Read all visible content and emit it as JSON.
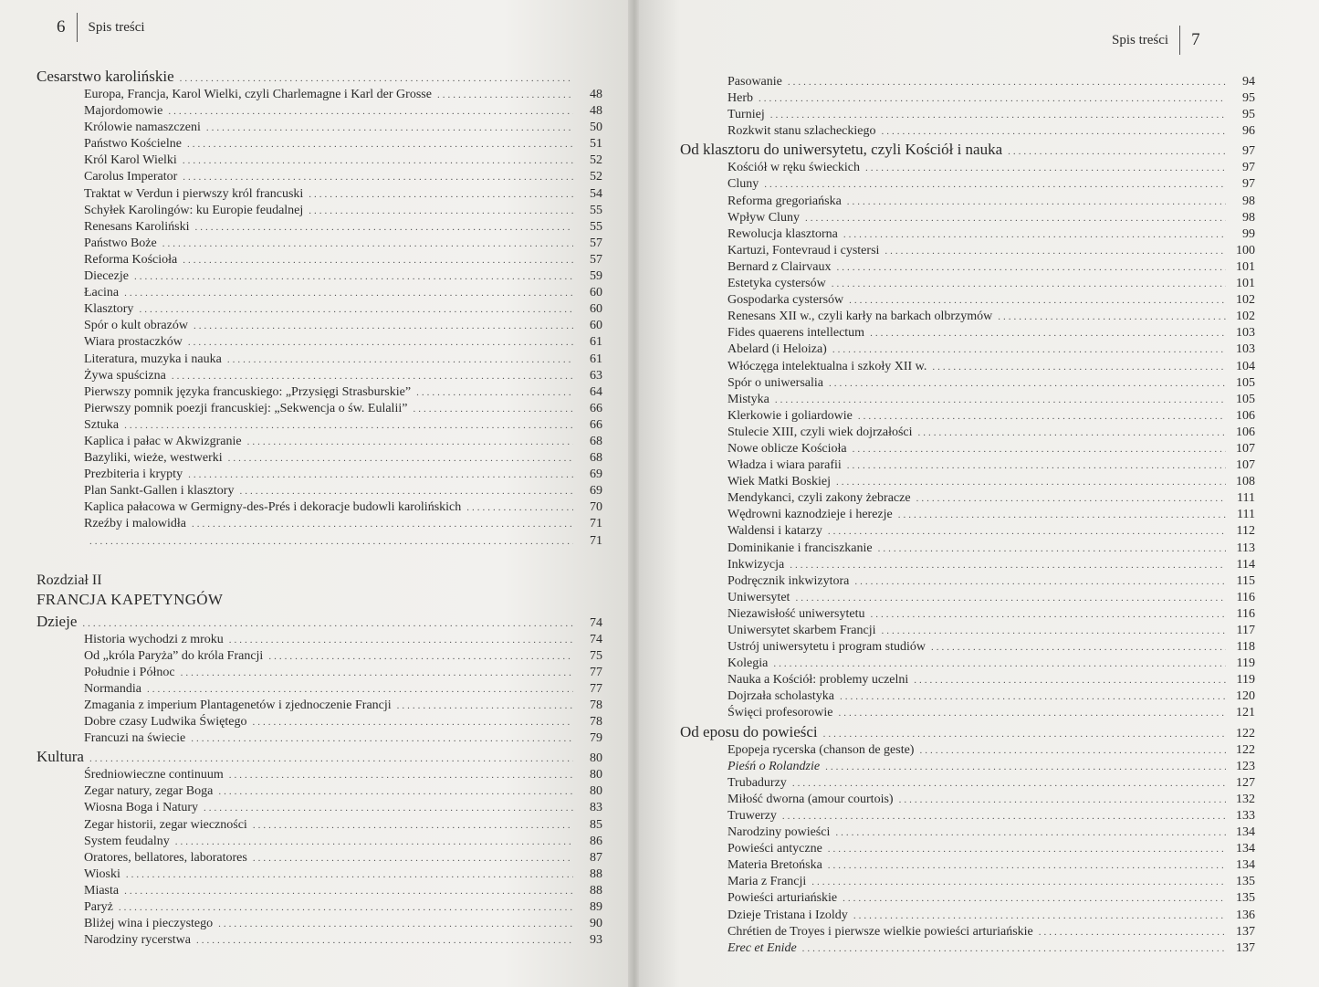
{
  "left_page": {
    "page_number": "6",
    "running_head": "Spis treści",
    "blocks": [
      {
        "type": "sec",
        "title": "Cesarstwo karolińskie",
        "page": ""
      },
      {
        "type": "sub",
        "title": "Europa, Francja, Karol Wielki, czyli Charlemagne i Karl der Grosse",
        "page": "48"
      },
      {
        "type": "sub",
        "title": "Majordomowie",
        "page": "48"
      },
      {
        "type": "sub",
        "title": "Królowie namaszczeni",
        "page": "50"
      },
      {
        "type": "sub",
        "title": "Państwo Kościelne",
        "page": "51"
      },
      {
        "type": "sub",
        "title": "Król Karol Wielki",
        "page": "52"
      },
      {
        "type": "sub",
        "title": "Carolus Imperator",
        "page": "52"
      },
      {
        "type": "sub",
        "title": "Traktat w Verdun i pierwszy król francuski",
        "page": "54"
      },
      {
        "type": "sub",
        "title": "Schyłek Karolingów: ku Europie feudalnej",
        "page": "55"
      },
      {
        "type": "sub",
        "title": "Renesans Karoliński",
        "page": "55"
      },
      {
        "type": "sub",
        "title": "Państwo Boże",
        "page": "57"
      },
      {
        "type": "sub",
        "title": "Reforma Kościoła",
        "page": "57"
      },
      {
        "type": "sub",
        "title": "Diecezje",
        "page": "59"
      },
      {
        "type": "sub",
        "title": "Łacina",
        "page": "60"
      },
      {
        "type": "sub",
        "title": "Klasztory",
        "page": "60"
      },
      {
        "type": "sub",
        "title": "Spór o kult obrazów",
        "page": "60"
      },
      {
        "type": "sub",
        "title": "Wiara prostaczków",
        "page": "61"
      },
      {
        "type": "sub",
        "title": "Literatura, muzyka i nauka",
        "page": "61"
      },
      {
        "type": "sub",
        "title": "Żywa spuścizna",
        "page": "63"
      },
      {
        "type": "sub",
        "title": "Pierwszy pomnik języka francuskiego: „Przysięgi Strasburskie”",
        "page": "64"
      },
      {
        "type": "sub",
        "title": "Pierwszy pomnik poezji francuskiej: „Sekwencja o św. Eulalii”",
        "page": "66"
      },
      {
        "type": "sub",
        "title": "Sztuka",
        "page": "66"
      },
      {
        "type": "sub",
        "title": "Kaplica i pałac w Akwizgranie",
        "page": "68"
      },
      {
        "type": "sub",
        "title": "Bazyliki, wieże, westwerki",
        "page": "68"
      },
      {
        "type": "sub",
        "title": "Prezbiteria i krypty",
        "page": "69"
      },
      {
        "type": "sub",
        "title": "Plan Sankt-Gallen i klasztory",
        "page": "69"
      },
      {
        "type": "sub",
        "title": "Kaplica pałacowa w Germigny-des-Prés i dekoracje budowli karolińskich",
        "page": "70"
      },
      {
        "type": "sub",
        "title": "Rzeźby i malowidła",
        "page": "71"
      },
      {
        "type": "sub",
        "title": "",
        "page": "71"
      },
      {
        "type": "gap"
      },
      {
        "type": "chap",
        "title": "Rozdział II"
      },
      {
        "type": "chapt",
        "title": "FRANCJA KAPETYNGÓW"
      },
      {
        "type": "sec",
        "title": "Dzieje",
        "page": "74"
      },
      {
        "type": "sub",
        "title": "Historia wychodzi z mroku",
        "page": "74"
      },
      {
        "type": "sub",
        "title": "Od „króla Paryża” do króla Francji",
        "page": "75"
      },
      {
        "type": "sub",
        "title": "Południe i Północ",
        "page": "77"
      },
      {
        "type": "sub",
        "title": "Normandia",
        "page": "77"
      },
      {
        "type": "sub",
        "title": "Zmagania z imperium Plantagenetów i zjednoczenie Francji",
        "page": "78"
      },
      {
        "type": "sub",
        "title": "Dobre czasy Ludwika Świętego",
        "page": "78"
      },
      {
        "type": "sub",
        "title": "Francuzi na świecie",
        "page": "79"
      },
      {
        "type": "sec",
        "title": "Kultura",
        "page": "80"
      },
      {
        "type": "sub",
        "title": "Średniowieczne continuum",
        "page": "80"
      },
      {
        "type": "sub",
        "title": "Zegar natury, zegar Boga",
        "page": "80"
      },
      {
        "type": "sub",
        "title": "Wiosna Boga i Natury",
        "page": "83"
      },
      {
        "type": "sub",
        "title": "Zegar historii, zegar wieczności",
        "page": "85"
      },
      {
        "type": "sub",
        "title": "System feudalny",
        "page": "86"
      },
      {
        "type": "sub",
        "title": "Oratores, bellatores, laboratores",
        "page": "87"
      },
      {
        "type": "sub",
        "title": "Wioski",
        "page": "88"
      },
      {
        "type": "sub",
        "title": "Miasta",
        "page": "88"
      },
      {
        "type": "sub",
        "title": "Paryż",
        "page": "89"
      },
      {
        "type": "sub",
        "title": "Bliżej wina i pieczystego",
        "page": "90"
      },
      {
        "type": "sub",
        "title": "Narodziny rycerstwa",
        "page": "93"
      }
    ]
  },
  "right_page": {
    "page_number": "7",
    "running_head": "Spis treści",
    "blocks": [
      {
        "type": "sub",
        "title": "Pasowanie",
        "page": "94"
      },
      {
        "type": "sub",
        "title": "Herb",
        "page": "95"
      },
      {
        "type": "sub",
        "title": "Turniej",
        "page": "95"
      },
      {
        "type": "sub",
        "title": "Rozkwit stanu szlacheckiego",
        "page": "96"
      },
      {
        "type": "sec",
        "title": "Od klasztoru do uniwersytetu, czyli Kościół i nauka",
        "page": "97"
      },
      {
        "type": "sub",
        "title": "Kościół w ręku świeckich",
        "page": "97"
      },
      {
        "type": "sub",
        "title": "Cluny",
        "page": "97"
      },
      {
        "type": "sub",
        "title": "Reforma gregoriańska",
        "page": "98"
      },
      {
        "type": "sub",
        "title": "Wpływ Cluny",
        "page": "98"
      },
      {
        "type": "sub",
        "title": "Rewolucja klasztorna",
        "page": "99"
      },
      {
        "type": "sub",
        "title": "Kartuzi, Fontevraud i cystersi",
        "page": "100"
      },
      {
        "type": "sub",
        "title": "Bernard z Clairvaux",
        "page": "101"
      },
      {
        "type": "sub",
        "title": "Estetyka cystersów",
        "page": "101"
      },
      {
        "type": "sub",
        "title": "Gospodarka cystersów",
        "page": "102"
      },
      {
        "type": "sub",
        "title": "Renesans XII w., czyli karły na barkach olbrzymów",
        "page": "102"
      },
      {
        "type": "sub",
        "title": "Fides quaerens intellectum",
        "page": "103"
      },
      {
        "type": "sub",
        "title": "Abelard (i Heloiza)",
        "page": "103"
      },
      {
        "type": "sub",
        "title": "Włóczęga intelektualna i szkoły XII w.",
        "page": "104"
      },
      {
        "type": "sub",
        "title": "Spór o uniwersalia",
        "page": "105"
      },
      {
        "type": "sub",
        "title": "Mistyka",
        "page": "105"
      },
      {
        "type": "sub",
        "title": "Klerkowie i goliardowie",
        "page": "106"
      },
      {
        "type": "sub",
        "title": "Stulecie XIII, czyli wiek dojrzałości",
        "page": "106"
      },
      {
        "type": "sub",
        "title": "Nowe oblicze Kościoła",
        "page": "107"
      },
      {
        "type": "sub",
        "title": "Władza i wiara parafii",
        "page": "107"
      },
      {
        "type": "sub",
        "title": "Wiek Matki Boskiej",
        "page": "108"
      },
      {
        "type": "sub",
        "title": "Mendykanci, czyli zakony żebracze",
        "page": "111"
      },
      {
        "type": "sub",
        "title": "Wędrowni kaznodzieje i herezje",
        "page": "111"
      },
      {
        "type": "sub",
        "title": "Waldensi i katarzy",
        "page": "112"
      },
      {
        "type": "sub",
        "title": "Dominikanie i franciszkanie",
        "page": "113"
      },
      {
        "type": "sub",
        "title": "Inkwizycja",
        "page": "114"
      },
      {
        "type": "sub",
        "title": "Podręcznik inkwizytora",
        "page": "115"
      },
      {
        "type": "sub",
        "title": "Uniwersytet",
        "page": "116"
      },
      {
        "type": "sub",
        "title": "Niezawisłość uniwersytetu",
        "page": "116"
      },
      {
        "type": "sub",
        "title": "Uniwersytet skarbem Francji",
        "page": "117"
      },
      {
        "type": "sub",
        "title": "Ustrój uniwersytetu i program studiów",
        "page": "118"
      },
      {
        "type": "sub",
        "title": "Kolegia",
        "page": "119"
      },
      {
        "type": "sub",
        "title": "Nauka a Kościół: problemy uczelni",
        "page": "119"
      },
      {
        "type": "sub",
        "title": "Dojrzała scholastyka",
        "page": "120"
      },
      {
        "type": "sub",
        "title": "Święci profesorowie",
        "page": "121"
      },
      {
        "type": "sec",
        "title": "Od eposu do powieści",
        "page": "122"
      },
      {
        "type": "sub",
        "title": "Epopeja rycerska (chanson de geste)",
        "page": "122"
      },
      {
        "type": "sub",
        "title": "Pieśń o Rolandzie",
        "page": "123",
        "italic": true
      },
      {
        "type": "sub",
        "title": "Trubadurzy",
        "page": "127"
      },
      {
        "type": "sub",
        "title": "Miłość dworna (amour courtois)",
        "page": "132"
      },
      {
        "type": "sub",
        "title": "Truwerzy",
        "page": "133"
      },
      {
        "type": "sub",
        "title": "Narodziny powieści",
        "page": "134"
      },
      {
        "type": "sub",
        "title": "Powieści antyczne",
        "page": "134"
      },
      {
        "type": "sub",
        "title": "Materia Bretońska",
        "page": "134"
      },
      {
        "type": "sub",
        "title": "Maria z Francji",
        "page": "135"
      },
      {
        "type": "sub",
        "title": "Powieści arturiańskie",
        "page": "135"
      },
      {
        "type": "sub",
        "title": "Dzieje Tristana i Izoldy",
        "page": "136"
      },
      {
        "type": "sub",
        "title": "Chrétien de Troyes i pierwsze wielkie powieści arturiańskie",
        "page": "137"
      },
      {
        "type": "sub",
        "title": "Erec et Enide",
        "page": "137",
        "italic": true
      }
    ]
  }
}
